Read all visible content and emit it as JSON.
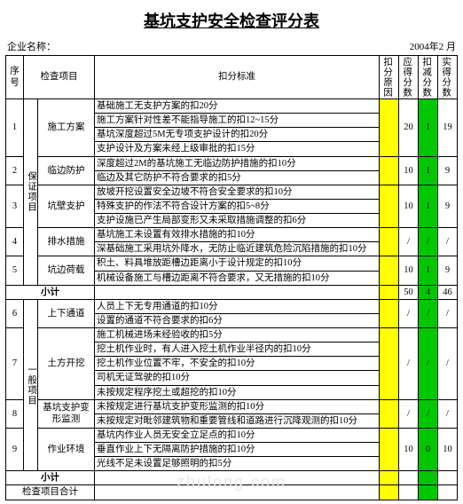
{
  "title": "基坑支护安全检查评分表",
  "company_label": "企业名称：",
  "date_text": "2004年2  月",
  "columns": {
    "seq": "序号",
    "item": "检查项目",
    "std": "扣分标准",
    "reason": "扣分原因",
    "should": "应得分数",
    "deduct": "扣减分数",
    "actual": "实得分数"
  },
  "category_a": "保证项目",
  "category_b": "一般项目",
  "rows_a": [
    {
      "seq": "1",
      "item": "施工方案",
      "criteria": [
        "基础施工无支护方案的扣20分",
        "施工方案针对性差不能指导施工的扣12~15分",
        "基坑深度超过5M无专项支护设计的扣20分",
        "支护设计及方案未经上级审批的扣15分"
      ],
      "should": "20",
      "deduct": "1",
      "actual": "19"
    },
    {
      "seq": "2",
      "item": "临边防护",
      "criteria": [
        "深度超过2M的基坑施工无临边防护措施的扣10分",
        "临边及其它防护不符合要求的扣5分"
      ],
      "should": "10",
      "deduct": "1",
      "actual": "9"
    },
    {
      "seq": "3",
      "item": "坑壁支护",
      "criteria": [
        "放坡开挖设置安全边坡不符合安全要求的扣10分",
        "特殊支护的作法不符合设计方案的扣5~8分",
        "支护设施已产生局部变形又未采取措施调整的扣6分"
      ],
      "should": "10",
      "deduct": "1",
      "actual": "9"
    },
    {
      "seq": "4",
      "item": "排水措施",
      "criteria": [
        "基坑施工未设置有效排水措施的扣10分",
        "深基础施工采用坑外降水，无防止临近建筑危险沉陷措施的扣10分"
      ],
      "should": "/",
      "deduct": "/",
      "actual": "/"
    },
    {
      "seq": "5",
      "item": "坑边荷载",
      "criteria": [
        "积土、料具堆放距槽边距离小于设计规定的扣10分",
        "机械设备施工与槽边距离不符合要求，又无措施的扣10分"
      ],
      "should": "10",
      "deduct": "1",
      "actual": "9"
    }
  ],
  "subtotal_a": {
    "label": "小计",
    "should": "50",
    "deduct": "4",
    "actual": "46"
  },
  "rows_b": [
    {
      "seq": "6",
      "item": "上下通道",
      "criteria": [
        "人员上下无专用通道的扣10分",
        "设置的通道不符合要求的扣6分"
      ],
      "should": "/",
      "deduct": "/",
      "actual": "/"
    },
    {
      "seq": "7",
      "item": "土方开挖",
      "criteria": [
        "施工机械进场未经验收的扣5分",
        "挖土机作业时，有人进入挖土机作业半径内的扣10分",
        "挖土机作业位置不牢，不安全的扣10分",
        "司机无证驾驶的扣10分",
        "未按规定程序挖土或超挖的扣10分"
      ],
      "should": "/",
      "deduct": "/",
      "actual": "/"
    },
    {
      "seq": "8",
      "item": "基坑支护变形监测",
      "criteria": [
        "未按规定进行基坑支护变形监测的扣10分",
        "未按规定对毗邻建筑物和重要管线和道路进行沉降观测的扣10分"
      ],
      "should": "/",
      "deduct": "/",
      "actual": "/"
    },
    {
      "seq": "9",
      "item": "作业环境",
      "criteria": [
        "基坑内作业人员无安全立足点的扣10分",
        "垂直作业上下无隔离防护措施的扣10分",
        "光线不足未设置足够照明的扣5分"
      ],
      "should": "10",
      "deduct": "0",
      "actual": "10"
    }
  ],
  "subtotal_b": {
    "label": "小计",
    "should": "",
    "deduct": "",
    "actual": ""
  },
  "grand_total_label": "检查项目合计",
  "colors": {
    "highlight_reason": "#ffff00",
    "highlight_score": "#00c800",
    "border": "#000000",
    "background": "#ffffff"
  },
  "watermark": "zhulong.com"
}
